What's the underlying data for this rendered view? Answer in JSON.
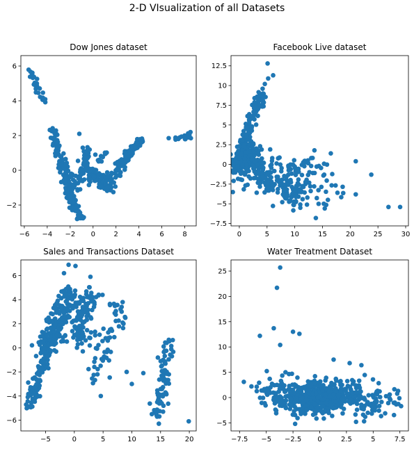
{
  "figure": {
    "title": "2-D VIsualization of all Datasets"
  },
  "colors": {
    "points": "#1f77b4",
    "axes": "#000000",
    "background": "#ffffff"
  },
  "chart_data": [
    {
      "type": "scatter",
      "title": "Dow Jones dataset",
      "xlim": [
        -6.3,
        9.0
      ],
      "ylim": [
        -3.2,
        6.6
      ],
      "xticks": [
        -6,
        -4,
        -2,
        0,
        2,
        4,
        6,
        8
      ],
      "yticks": [
        -2,
        0,
        2,
        4,
        6
      ],
      "clusters": [
        {
          "x": [
            -5.8,
            -4.0
          ],
          "y": [
            6.1,
            3.6
          ],
          "n": 24,
          "spread": 0.25
        },
        {
          "x": [
            -3.7,
            -1.8
          ],
          "y": [
            2.4,
            -1.2
          ],
          "n": 90,
          "spread": 0.35
        },
        {
          "x": [
            -2.8,
            -1.8
          ],
          "y": [
            0.5,
            -2.0
          ],
          "n": 40,
          "spread": 0.3
        },
        {
          "x": [
            -2.2,
            -1.0
          ],
          "y": [
            -1.2,
            -2.8
          ],
          "n": 70,
          "spread": 0.25
        },
        {
          "x": [
            -1.5,
            -0.4
          ],
          "y": [
            -1.0,
            1.2
          ],
          "n": 60,
          "spread": 0.25
        },
        {
          "x": [
            -0.5,
            1.5
          ],
          "y": [
            0.0,
            -1.0
          ],
          "n": 120,
          "spread": 0.4
        },
        {
          "x": [
            0.5,
            1.2
          ],
          "y": [
            0.4,
            1.0
          ],
          "n": 12,
          "spread": 0.2
        },
        {
          "x": [
            1.4,
            3.0
          ],
          "y": [
            -0.6,
            0.9
          ],
          "n": 70,
          "spread": 0.3
        },
        {
          "x": [
            2.8,
            4.3
          ],
          "y": [
            0.9,
            1.8
          ],
          "n": 50,
          "spread": 0.25
        },
        {
          "x": [
            7.2,
            8.4
          ],
          "y": [
            1.8,
            2.0
          ],
          "n": 18,
          "spread": 0.15
        }
      ],
      "outliers": [
        {
          "x": -1.2,
          "y": 2.1
        },
        {
          "x": 6.6,
          "y": 1.85
        },
        {
          "x": 8.5,
          "y": 2.2
        },
        {
          "x": -0.9,
          "y": 1.3
        },
        {
          "x": 0.2,
          "y": 0.9
        }
      ]
    },
    {
      "type": "scatter",
      "title": "Facebook Live dataset",
      "xlim": [
        -1.5,
        30.5
      ],
      "ylim": [
        -7.8,
        13.8
      ],
      "xticks": [
        0,
        5,
        10,
        15,
        20,
        25,
        30
      ],
      "yticks": [
        -7.5,
        -5.0,
        -2.5,
        0.0,
        2.5,
        5.0,
        7.5,
        10.0,
        12.5
      ],
      "clusters": [
        {
          "x": [
            -0.5,
            4.0
          ],
          "y": [
            0.0,
            9.0
          ],
          "n": 140,
          "spread": 0.35
        },
        {
          "x": [
            -0.5,
            3.0
          ],
          "y": [
            -0.2,
            2.0
          ],
          "n": 120,
          "spread": 0.6
        },
        {
          "x": [
            -0.5,
            11.0
          ],
          "y": [
            -0.2,
            -4.0
          ],
          "n": 180,
          "spread": 0.8
        },
        {
          "x": [
            2.0,
            15.0
          ],
          "y": [
            0.0,
            -0.5
          ],
          "n": 70,
          "spread": 0.7
        },
        {
          "x": [
            9.0,
            18.0
          ],
          "y": [
            -2.0,
            -4.0
          ],
          "n": 35,
          "spread": 1.0
        }
      ],
      "outliers": [
        {
          "x": 5.1,
          "y": 12.8
        },
        {
          "x": 6.1,
          "y": 11.3
        },
        {
          "x": 5.2,
          "y": 10.9
        },
        {
          "x": 4.6,
          "y": 10.2
        },
        {
          "x": 4.2,
          "y": 9.6
        },
        {
          "x": 16.5,
          "y": 1.4
        },
        {
          "x": 21.0,
          "y": 0.4
        },
        {
          "x": 23.8,
          "y": -1.3
        },
        {
          "x": 21.0,
          "y": -3.8
        },
        {
          "x": 17.7,
          "y": -3.6
        },
        {
          "x": 14.3,
          "y": -5.0
        },
        {
          "x": 12.2,
          "y": -5.1
        },
        {
          "x": 13.8,
          "y": -6.8
        },
        {
          "x": 11.0,
          "y": -5.5
        },
        {
          "x": 26.9,
          "y": -5.4
        },
        {
          "x": 29.0,
          "y": -5.4
        }
      ]
    },
    {
      "type": "scatter",
      "title": "Sales and Transactions Dataset",
      "xlim": [
        -9.3,
        21.2
      ],
      "ylim": [
        -6.9,
        7.3
      ],
      "xticks": [
        -5,
        0,
        5,
        10,
        15,
        20
      ],
      "yticks": [
        -6,
        -4,
        -2,
        0,
        2,
        4,
        6
      ],
      "clusters": [
        {
          "x": [
            -8.0,
            -4.5
          ],
          "y": [
            -5.0,
            0.0
          ],
          "n": 110,
          "spread": 0.35
        },
        {
          "x": [
            -5.5,
            -2.0
          ],
          "y": [
            -0.5,
            3.5
          ],
          "n": 120,
          "spread": 0.6
        },
        {
          "x": [
            -3.0,
            -0.8
          ],
          "y": [
            0.5,
            5.0
          ],
          "n": 90,
          "spread": 0.6
        },
        {
          "x": [
            0.5,
            3.0
          ],
          "y": [
            0.5,
            5.0
          ],
          "n": 110,
          "spread": 0.7
        },
        {
          "x": [
            3.0,
            8.0
          ],
          "y": [
            -2.5,
            3.5
          ],
          "n": 60,
          "spread": 0.9
        },
        {
          "x": [
            14.5,
            16.5
          ],
          "y": [
            -5.5,
            0.5
          ],
          "n": 80,
          "spread": 0.5
        }
      ],
      "outliers": [
        {
          "x": -1.0,
          "y": 6.9
        },
        {
          "x": 0.2,
          "y": 6.8
        },
        {
          "x": -1.8,
          "y": 6.2
        },
        {
          "x": 2.8,
          "y": 5.9
        },
        {
          "x": 4.9,
          "y": 4.4
        },
        {
          "x": 8.4,
          "y": 3.8
        },
        {
          "x": 10.0,
          "y": -3.0
        },
        {
          "x": 9.1,
          "y": -2.0
        },
        {
          "x": 12.0,
          "y": -2.1
        },
        {
          "x": 14.7,
          "y": -6.3
        },
        {
          "x": 19.9,
          "y": -6.1
        },
        {
          "x": 4.6,
          "y": -4.0
        }
      ]
    },
    {
      "type": "scatter",
      "title": "Water Treatment Dataset",
      "xlim": [
        -8.3,
        8.3
      ],
      "ylim": [
        -6.6,
        27.2
      ],
      "xticks": [
        -7.5,
        -5.0,
        -2.5,
        0.0,
        2.5,
        5.0,
        7.5
      ],
      "yticks": [
        -5,
        0,
        5,
        10,
        15,
        20,
        25
      ],
      "clusters": [
        {
          "x": [
            -5.0,
            5.0
          ],
          "y": [
            0.0,
            0.0
          ],
          "n": 380,
          "spread": 1.1
        },
        {
          "x": [
            -2.0,
            2.0
          ],
          "y": [
            0.2,
            0.2
          ],
          "n": 160,
          "spread": 0.9
        },
        {
          "x": [
            5.0,
            7.5
          ],
          "y": [
            0.0,
            0.0
          ],
          "n": 25,
          "spread": 0.8
        }
      ],
      "outliers": [
        {
          "x": -3.7,
          "y": 25.7
        },
        {
          "x": -4.0,
          "y": 21.7
        },
        {
          "x": -4.3,
          "y": 13.7
        },
        {
          "x": -2.5,
          "y": 13.0
        },
        {
          "x": -1.9,
          "y": 12.6
        },
        {
          "x": -5.6,
          "y": 12.2
        },
        {
          "x": -3.7,
          "y": 10.4
        },
        {
          "x": 1.3,
          "y": 7.5
        },
        {
          "x": 2.8,
          "y": 6.8
        },
        {
          "x": 3.9,
          "y": 6.4
        },
        {
          "x": -7.1,
          "y": 3.1
        },
        {
          "x": -3.2,
          "y": 5.0
        },
        {
          "x": -2.6,
          "y": 4.7
        },
        {
          "x": 0.6,
          "y": 3.9
        },
        {
          "x": -2.3,
          "y": -5.2
        },
        {
          "x": 3.4,
          "y": -4.8
        }
      ]
    }
  ]
}
